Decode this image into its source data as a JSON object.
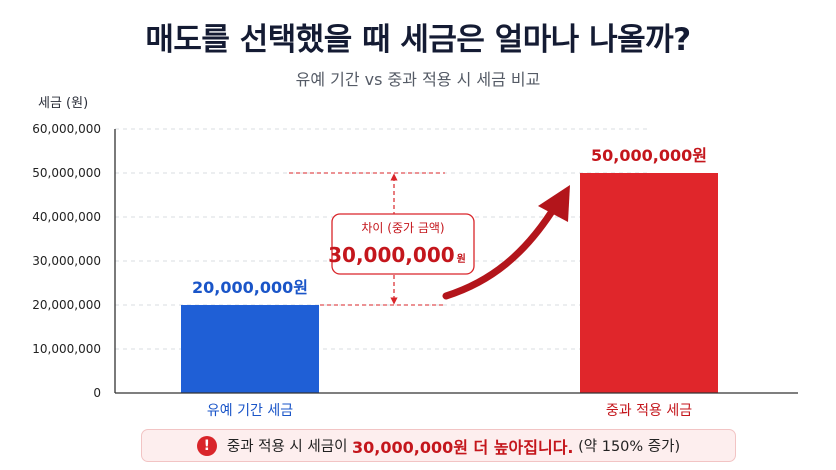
{
  "title": "매도를 선택했을 때 세금은 얼마나 나올까?",
  "subtitle": "유예 기간 vs 중과 적용 시 세금 비교",
  "colors": {
    "blue": "#1f5fd6",
    "red": "#e0262b",
    "dark_red": "#b3151b",
    "blue_text": "#1a55c8",
    "red_text": "#c4161c"
  },
  "chart_data": {
    "type": "bar",
    "ylabel": "세금 (원)",
    "ylim": [
      0,
      60000000
    ],
    "yticks": [
      0,
      10000000,
      20000000,
      30000000,
      40000000,
      50000000,
      60000000
    ],
    "ytick_labels": [
      "0",
      "10,000,000",
      "20,000,000",
      "30,000,000",
      "40,000,000",
      "50,000,000",
      "60,000,000"
    ],
    "categories": [
      "유예 기간 세금",
      "중과 적용 세금"
    ],
    "values": [
      20000000,
      50000000
    ],
    "value_labels": [
      "20,000,000원",
      "50,000,000원"
    ],
    "grid": true,
    "annotation": {
      "title": "차이 (중가 금액)",
      "value": "30,000,000",
      "unit": "원",
      "from": 20000000,
      "to": 50000000
    }
  },
  "note": {
    "icon": "warning-icon",
    "prefix": "중과 적용 시 세금이 ",
    "highlight": "30,000,000원 더 높아집니다.",
    "suffix": " (약 150% 증가)"
  }
}
